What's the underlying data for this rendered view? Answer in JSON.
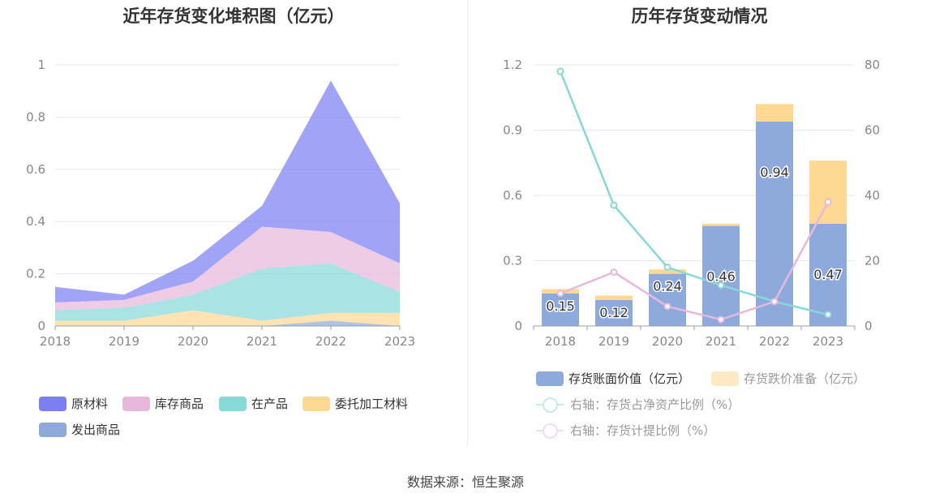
{
  "source": "数据来源：恒生聚源",
  "chart_data": [
    {
      "type": "area",
      "stacked": true,
      "title": "近年存货变化堆积图（亿元）",
      "x": [
        "2018",
        "2019",
        "2020",
        "2021",
        "2022",
        "2023"
      ],
      "y_ticks": [
        "0",
        "0.2",
        "0.4",
        "0.6",
        "0.8",
        "1"
      ],
      "ylim": [
        0,
        1
      ],
      "grid": true,
      "legend_position": "bottom",
      "series": [
        {
          "name": "原材料",
          "color": "#7b7ff2",
          "values": [
            0.06,
            0.02,
            0.08,
            0.08,
            0.58,
            0.23
          ]
        },
        {
          "name": "库存商品",
          "color": "#e8b8dc",
          "values": [
            0.03,
            0.03,
            0.05,
            0.16,
            0.12,
            0.11
          ]
        },
        {
          "name": "在产品",
          "color": "#88d8d8",
          "values": [
            0.04,
            0.05,
            0.06,
            0.2,
            0.19,
            0.08
          ]
        },
        {
          "name": "委托加工材料",
          "color": "#ffd893",
          "values": [
            0.02,
            0.02,
            0.06,
            0.02,
            0.03,
            0.05
          ]
        },
        {
          "name": "发出商品",
          "color": "#8eaadc",
          "values": [
            0.0,
            0.0,
            0.0,
            0.0,
            0.02,
            0.0
          ]
        }
      ]
    },
    {
      "type": "bar",
      "stacked": true,
      "title": "历年存货变动情况",
      "categories": [
        "2018",
        "2019",
        "2020",
        "2021",
        "2022",
        "2023"
      ],
      "y_left_ticks": [
        "0",
        "0.3",
        "0.6",
        "0.9",
        "1.2"
      ],
      "y_left_lim": [
        0,
        1.2
      ],
      "y_right_ticks": [
        "0",
        "20",
        "40",
        "60",
        "80"
      ],
      "y_right_lim": [
        0,
        80
      ],
      "grid": true,
      "legend_position": "bottom",
      "series": [
        {
          "name": "存货账面价值（亿元）",
          "type": "bar",
          "axis": "left",
          "color": "#8eaadc",
          "values": [
            0.15,
            0.12,
            0.24,
            0.46,
            0.94,
            0.47
          ],
          "labels": [
            "0.15",
            "0.12",
            "0.24",
            "0.46",
            "0.94",
            "0.47"
          ]
        },
        {
          "name": "存货跌价准备（亿元）",
          "type": "bar",
          "axis": "left",
          "color": "#ffd893",
          "values": [
            0.02,
            0.02,
            0.02,
            0.01,
            0.08,
            0.29
          ]
        },
        {
          "name": "右轴：存货占净资产比例（%）",
          "type": "line",
          "axis": "right",
          "color": "#88d8d8",
          "values": [
            78,
            37,
            18,
            12.5,
            7.5,
            3.5
          ]
        },
        {
          "name": "右轴：存货计提比例（%）",
          "type": "line",
          "axis": "right",
          "color": "#e8b8dc",
          "values": [
            10,
            16.5,
            6,
            2,
            7.5,
            38
          ]
        }
      ]
    }
  ]
}
